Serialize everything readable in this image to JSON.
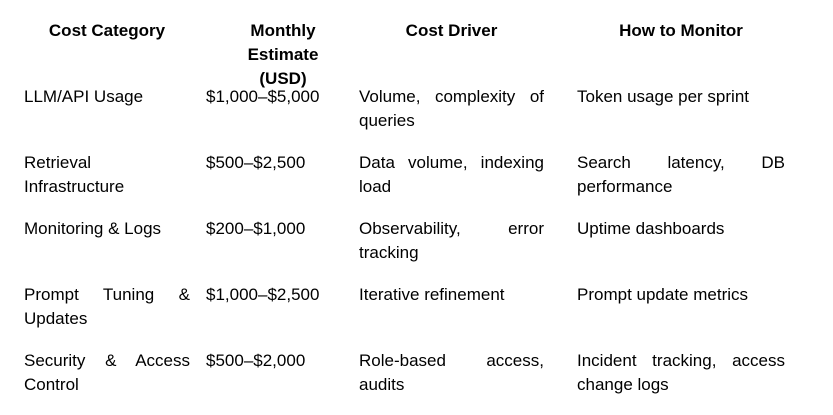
{
  "headers": [
    "Cost Category",
    "Monthly Estimate (USD)",
    "Cost Driver",
    "How to Monitor"
  ],
  "rows": [
    [
      "LLM/API Usage",
      "$1,000–$5,000",
      "Volume, complexity of queries",
      "Token usage per sprint"
    ],
    [
      "Retrieval Infrastructure",
      "$500–$2,500",
      "Data volume, indexing load",
      "Search latency, DB performance"
    ],
    [
      "Monitoring & Logs",
      "$200–$1,000",
      "Observability, error tracking",
      "Uptime dashboards"
    ],
    [
      "Prompt Tuning & Updates",
      "$1,000–$2,500",
      "Iterative refinement",
      "Prompt update metrics"
    ],
    [
      "Security & Access Control",
      "$500–$2,000",
      "Role-based access, audits",
      "Incident tracking, access change logs"
    ]
  ]
}
